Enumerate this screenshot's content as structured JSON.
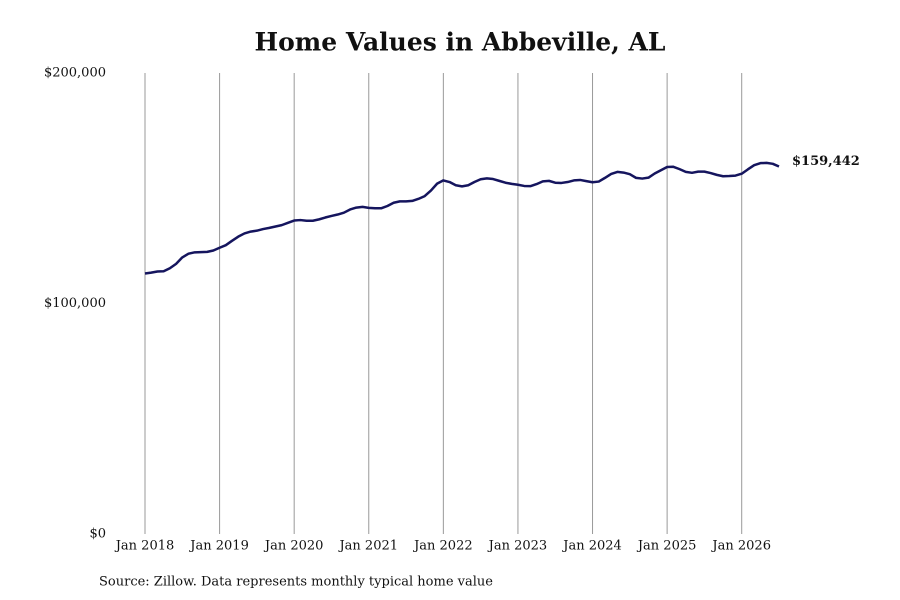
{
  "chart_data": {
    "type": "line",
    "title": "Home Values in Abbeville, AL",
    "source": "Source: Zillow. Data represents monthly typical home value",
    "x": [
      "2018-01",
      "2018-02",
      "2018-03",
      "2018-04",
      "2018-05",
      "2018-06",
      "2018-07",
      "2018-08",
      "2018-09",
      "2018-10",
      "2018-11",
      "2018-12",
      "2019-01",
      "2019-02",
      "2019-03",
      "2019-04",
      "2019-05",
      "2019-06",
      "2019-07",
      "2019-08",
      "2019-09",
      "2019-10",
      "2019-11",
      "2019-12",
      "2020-01",
      "2020-02",
      "2020-03",
      "2020-04",
      "2020-05",
      "2020-06",
      "2020-07",
      "2020-08",
      "2020-09",
      "2020-10",
      "2020-11",
      "2020-12",
      "2021-01",
      "2021-02",
      "2021-03",
      "2021-04",
      "2021-05",
      "2021-06",
      "2021-07",
      "2021-08",
      "2021-09",
      "2021-10",
      "2021-11",
      "2021-12",
      "2022-01",
      "2022-02",
      "2022-03",
      "2022-04",
      "2022-05",
      "2022-06",
      "2022-07",
      "2022-08",
      "2022-09",
      "2022-10",
      "2022-11",
      "2022-12",
      "2023-01",
      "2023-02",
      "2023-03",
      "2023-04",
      "2023-05",
      "2023-06",
      "2023-07",
      "2023-08",
      "2023-09",
      "2023-10",
      "2023-11",
      "2023-12",
      "2024-01",
      "2024-02",
      "2024-03",
      "2024-04",
      "2024-05",
      "2024-06",
      "2024-07",
      "2024-08",
      "2024-09",
      "2024-10",
      "2024-11",
      "2024-12",
      "2025-01",
      "2025-02",
      "2025-03",
      "2025-04",
      "2025-05",
      "2025-06",
      "2025-07",
      "2025-08",
      "2025-09",
      "2025-10",
      "2025-11",
      "2025-12",
      "2026-01",
      "2026-02",
      "2026-03",
      "2026-04",
      "2026-05",
      "2026-06",
      "2026-07"
    ],
    "series": [
      {
        "name": "Home value",
        "color": "#15155e",
        "values": [
          113000,
          113400,
          113900,
          114000,
          115300,
          117200,
          120000,
          121600,
          122200,
          122300,
          122400,
          123000,
          124200,
          125300,
          127200,
          129000,
          130400,
          131200,
          131600,
          132300,
          132800,
          133400,
          134000,
          135000,
          136000,
          136200,
          135900,
          135900,
          136500,
          137300,
          138000,
          138600,
          139400,
          140800,
          141600,
          141900,
          141500,
          141300,
          141300,
          142300,
          143700,
          144300,
          144300,
          144500,
          145400,
          146600,
          149000,
          152000,
          153400,
          152700,
          151300,
          150800,
          151300,
          152700,
          153900,
          154300,
          154000,
          153200,
          152400,
          151900,
          151500,
          151000,
          150900,
          151800,
          153000,
          153200,
          152400,
          152300,
          152700,
          153400,
          153600,
          153100,
          152600,
          152900,
          154500,
          156200,
          157100,
          156800,
          156100,
          154500,
          154200,
          154600,
          156400,
          157800,
          159200,
          159300,
          158300,
          157100,
          156700,
          157200,
          157200,
          156600,
          155800,
          155200,
          155300,
          155500,
          156300,
          158200,
          160000,
          160900,
          161000,
          160600,
          159442
        ],
        "last_value_label": "$159,442"
      }
    ],
    "xlim": [
      "2018-01",
      "2026-07"
    ],
    "xticks": [
      {
        "value": "2018-01",
        "label": "Jan 2018"
      },
      {
        "value": "2019-01",
        "label": "Jan 2019"
      },
      {
        "value": "2020-01",
        "label": "Jan 2020"
      },
      {
        "value": "2021-01",
        "label": "Jan 2021"
      },
      {
        "value": "2022-01",
        "label": "Jan 2022"
      },
      {
        "value": "2023-01",
        "label": "Jan 2023"
      },
      {
        "value": "2024-01",
        "label": "Jan 2024"
      },
      {
        "value": "2025-01",
        "label": "Jan 2025"
      },
      {
        "value": "2026-01",
        "label": "Jan 2026"
      }
    ],
    "ylim": [
      0,
      200000
    ],
    "yticks": [
      {
        "value": 0,
        "label": "$0"
      },
      {
        "value": 100000,
        "label": "$100,000"
      },
      {
        "value": 200000,
        "label": "$200,000"
      }
    ],
    "grid": "x"
  }
}
